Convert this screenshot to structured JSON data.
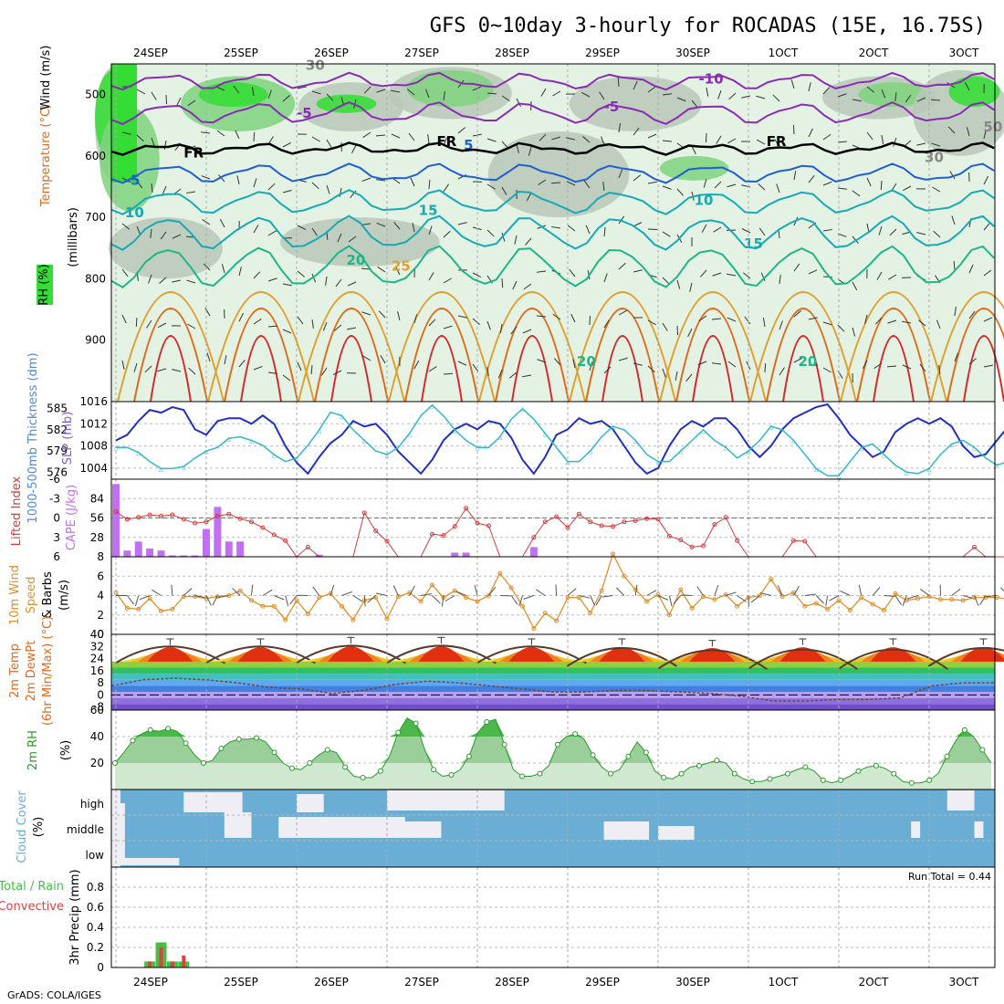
{
  "title": "GFS 0~10day 3-hourly for ROCADAS (15E, 16.75S)",
  "credit": "GrADS: COLA/IGES",
  "colors": {
    "rh_green": "#33dd33",
    "rh_mid": "#7fd47f",
    "rh_grey": "#b8c8b8",
    "rh_light": "#e4f2e4",
    "temp_purple": "#8a2bb5",
    "temp_blue": "#1f5fd0",
    "temp_cyan": "#17a9b5",
    "temp_teal": "#1fb58a",
    "temp_gold": "#e0a030",
    "temp_orange": "#e06a1a",
    "temp_red": "#d62a2a",
    "slp_line": "#2030c0",
    "thickness_line": "#30b8c8",
    "lifted_index": "#d83a3a",
    "cape_bar": "#c070f0",
    "wind_speed": "#e0902a",
    "rh2m_line": "#2a9a2a",
    "cloud_blue": "#6aaed6",
    "cloud_white": "#eeeef4",
    "precip_total": "#44c044",
    "precip_conv": "#e04040"
  },
  "chart_data": [
    {
      "panel": "upper-air",
      "type": "heatmap",
      "x_ticks": [
        "24SEP",
        "25SEP",
        "26SEP",
        "27SEP",
        "28SEP",
        "29SEP",
        "30SEP",
        "1OCT",
        "2OCT",
        "3OCT"
      ],
      "y_ticks": [
        500,
        600,
        700,
        800,
        900
      ],
      "ylim": [
        1000,
        450
      ],
      "ylabel_rh": "RH (%)",
      "ylabel_temp": "Temperature (°C)",
      "ylabel_wind": "Wind (m/s)",
      "ylabel_pressure": "(millibars)",
      "contour_labels": [
        {
          "text": "-10",
          "day": 6.45,
          "p": 482,
          "color": "temp_purple"
        },
        {
          "text": "-5",
          "day": 2.0,
          "p": 538,
          "color": "temp_purple"
        },
        {
          "text": "-5",
          "day": 5.4,
          "p": 527,
          "color": "temp_purple"
        },
        {
          "text": "FR",
          "day": 0.75,
          "p": 602,
          "color": "#000000"
        },
        {
          "text": "FR",
          "day": 3.55,
          "p": 584,
          "color": "#000000"
        },
        {
          "text": "FR",
          "day": 7.2,
          "p": 584,
          "color": "#000000"
        },
        {
          "text": "-5",
          "day": 0.1,
          "p": 647,
          "color": "temp_blue"
        },
        {
          "text": "5",
          "day": 3.85,
          "p": 590,
          "color": "temp_blue"
        },
        {
          "text": "10",
          "day": 0.1,
          "p": 700,
          "color": "temp_cyan"
        },
        {
          "text": "15",
          "day": 3.35,
          "p": 696,
          "color": "temp_cyan"
        },
        {
          "text": "10",
          "day": 6.4,
          "p": 680,
          "color": "temp_cyan"
        },
        {
          "text": "15",
          "day": 6.95,
          "p": 750,
          "color": "temp_cyan"
        },
        {
          "text": "20",
          "day": 2.55,
          "p": 777,
          "color": "temp_teal"
        },
        {
          "text": "25",
          "day": 3.05,
          "p": 787,
          "color": "temp_gold"
        },
        {
          "text": "20",
          "day": 5.1,
          "p": 942,
          "color": "temp_teal"
        },
        {
          "text": "20",
          "day": 7.55,
          "p": 942,
          "color": "temp_teal"
        },
        {
          "text": "30",
          "day": 2.1,
          "p": 460,
          "color": "#888888"
        },
        {
          "text": "50",
          "day": 9.6,
          "p": 560,
          "color": "#888888"
        },
        {
          "text": "30",
          "day": 8.95,
          "p": 610,
          "color": "#888888"
        }
      ]
    },
    {
      "panel": "slp-thickness",
      "type": "line",
      "ylabel_thickness": "1000-500mb Thickness (dm)",
      "ylabel_slp": "SLP (mb)",
      "left_ticks": [
        576,
        579,
        582,
        585
      ],
      "right_ticks": [
        1004,
        1008,
        1012,
        1016
      ],
      "slp_ylim": [
        1002,
        1016
      ],
      "thickness_ylim": [
        575,
        586
      ],
      "series": [
        {
          "name": "SLP (mb)",
          "unit": "mb",
          "values": [
            1009,
            1010,
            1012.5,
            1014.5,
            1014,
            1015,
            1014.5,
            1011,
            1010,
            1012.5,
            1013,
            1013,
            1012,
            1013.5,
            1012,
            1008,
            1005,
            1003,
            1006,
            1008.5,
            1010,
            1012.5,
            1011.5,
            1012,
            1010,
            1007,
            1005,
            1003,
            1005.5,
            1009,
            1011,
            1012,
            1011,
            1012.5,
            1012,
            1009.5,
            1005.5,
            1003,
            1006,
            1010,
            1011,
            1013,
            1012,
            1012.5,
            1011,
            1008,
            1005,
            1003,
            1004,
            1008,
            1011,
            1012.5,
            1011.5,
            1013,
            1013,
            1011,
            1008,
            1006,
            1008,
            1011,
            1013,
            1014,
            1015,
            1015.5,
            1013,
            1010,
            1008,
            1006,
            1007,
            1010.5,
            1012,
            1013,
            1012,
            1013,
            1011.5,
            1008,
            1006,
            1006.5,
            1009,
            1011.5,
            1013.5,
            1012.5,
            1011,
            1012,
            1011.5,
            1008,
            1005,
            1004,
            1006,
            1009,
            1011.5,
            1012.5,
            1011,
            1012,
            1011.5,
            1008,
            1005.5,
            1006,
            1008,
            1010.5,
            1012,
            1013
          ]
        },
        {
          "name": "1000-500mb Thickness (dm)",
          "unit": "dm",
          "values": [
            579.5,
            579.5,
            578.8,
            577.5,
            576.5,
            576.5,
            576.8,
            578,
            579,
            579.5,
            580.8,
            581,
            580.5,
            579.8,
            578.5,
            577.5,
            578,
            579.8,
            582,
            584.5,
            584,
            582,
            580.5,
            579,
            578.5,
            579.5,
            581.5,
            584,
            585.5,
            584,
            582,
            580.5,
            579.5,
            579.5,
            581,
            583.5,
            585,
            583.5,
            581.5,
            579.5,
            577.5,
            577.5,
            579,
            581,
            582.5,
            582,
            580.5,
            578.5,
            577.5,
            577.5,
            579,
            580.5,
            582,
            580.5,
            579.5,
            578,
            579,
            580.5,
            582.5,
            582,
            580.5,
            578.5,
            576.5,
            575.5,
            575.5,
            577.5,
            579.5,
            580,
            578.5,
            577,
            576,
            575.8,
            576.5,
            578.5,
            580,
            580.5,
            579.5,
            578,
            577,
            577.5,
            579.5,
            581.5,
            583,
            581.5,
            580,
            578,
            576.5,
            576.5,
            578,
            580,
            582,
            583.5,
            583,
            581,
            579,
            577.5,
            576.5,
            576.5,
            577.5,
            577
          ]
        }
      ]
    },
    {
      "panel": "cape-lifted-index",
      "type": "bar",
      "ylabel_li": "Lifted Index",
      "ylabel_cape": "CAPE (J/kg)",
      "left_ticks": [
        "-6",
        "-3",
        "0",
        "3",
        "6"
      ],
      "right_ticks": [
        28,
        56,
        84
      ],
      "cape_ylim": [
        0,
        112
      ],
      "li_ylim": [
        -6,
        6
      ],
      "cape_bars": [
        {
          "step": 0,
          "value": 105
        },
        {
          "step": 1,
          "value": 9
        },
        {
          "step": 2,
          "value": 22
        },
        {
          "step": 3,
          "value": 12
        },
        {
          "step": 4,
          "value": 9
        },
        {
          "step": 5,
          "value": 2
        },
        {
          "step": 6,
          "value": 2
        },
        {
          "step": 7,
          "value": 2
        },
        {
          "step": 8,
          "value": 40
        },
        {
          "step": 9,
          "value": 72
        },
        {
          "step": 10,
          "value": 22
        },
        {
          "step": 11,
          "value": 22
        },
        {
          "step": 18,
          "value": 3
        },
        {
          "step": 30,
          "value": 6
        },
        {
          "step": 31,
          "value": 6
        },
        {
          "step": 37,
          "value": 14
        }
      ],
      "li_values": [
        -1,
        0.2,
        -0.1,
        -0.5,
        -0.3,
        -0.5,
        0.2,
        0.8,
        0.6,
        -0.3,
        -0.6,
        0.1,
        0.6,
        1.5,
        2.6,
        3.5,
        6,
        4.5,
        6,
        6,
        6,
        6,
        -0.8,
        2,
        3.6,
        6,
        6,
        6,
        2.5,
        2.7,
        1.3,
        -1.5,
        0.8,
        1.2,
        6,
        6,
        6,
        3,
        0.6,
        -0.2,
        1.5,
        -0.6,
        0.6,
        1.2,
        1.3,
        0.6,
        0.4,
        0.1,
        0.2,
        2.8,
        3.4,
        4.5,
        4.3,
        1,
        -0.1,
        3.5,
        6,
        6,
        6,
        6,
        3.5,
        3.6,
        6,
        6,
        6,
        6,
        6,
        6,
        6,
        6,
        6,
        6,
        6,
        6,
        6,
        6,
        4.5,
        6,
        6,
        6,
        6,
        6,
        6,
        6,
        6,
        6,
        6,
        6,
        6,
        6,
        6,
        6,
        4.7,
        6,
        3,
        0.2,
        3,
        5.3,
        2,
        3.6,
        6
      ]
    },
    {
      "panel": "10m-wind",
      "type": "line",
      "ylabel": "10m Wind Speed & Barbs (m/s)",
      "ylabel_line1": "10m Wind",
      "ylabel_line2": "Speed",
      "ylabel_line3": "& Barbs",
      "ylabel_line4": "(m/s)",
      "y_ticks": [
        0,
        2,
        4,
        6,
        8
      ],
      "ylim": [
        0,
        8
      ],
      "values": [
        4.3,
        2.7,
        2.6,
        3.7,
        2.4,
        2.6,
        3.9,
        3.9,
        3.7,
        3.9,
        4,
        4.5,
        3.5,
        2.9,
        2.9,
        1.5,
        3.5,
        2.1,
        3.8,
        4.2,
        2.9,
        1.5,
        3.5,
        3.8,
        1.6,
        3.9,
        4.3,
        3.4,
        5.1,
        3.8,
        4.5,
        3.8,
        3.4,
        4,
        6.3,
        4.8,
        2.9,
        0.6,
        2.2,
        1.4,
        3.8,
        3.8,
        2.2,
        4.5,
        8.3,
        6,
        4.6,
        3.4,
        4.1,
        2,
        4.6,
        2.7,
        3.9,
        3.6,
        4.1,
        2.9,
        3.8,
        4,
        5.7,
        3.9,
        4.3,
        2.9,
        3.2,
        2.6,
        3.5,
        2.5,
        3.8,
        3.1,
        2.5,
        4.2,
        3.5,
        3.7,
        3.9,
        3.6,
        3.6,
        3.5,
        3.8,
        3.8,
        3.8,
        3.6,
        3.5,
        5.5,
        4.2,
        3.9,
        4.8,
        5.6,
        4.3,
        3.2,
        0.5,
        0.5,
        4,
        4.3,
        3.2,
        2.2,
        5.6,
        4.9,
        3.2,
        3.9,
        3.4,
        2.8,
        3.8
      ]
    },
    {
      "panel": "2m-temperature",
      "type": "area",
      "ylabel_line1": "2m Temp",
      "ylabel_line2": "2m DewPt",
      "ylabel_line3": "(6hr Min/Max) (°C)",
      "y_ticks": [
        "-8",
        "0",
        "8",
        "16",
        "24",
        "32",
        "40"
      ],
      "y_top_tick": "40",
      "ylim": [
        -10,
        40
      ],
      "temp_max_days": [
        0.6,
        1.6,
        2.6,
        3.6,
        4.6,
        5.6,
        6.6,
        7.6,
        8.6,
        9.6
      ],
      "temp_max_values": [
        33,
        33,
        34,
        34,
        33,
        33,
        32,
        33,
        33,
        33
      ],
      "temp_min_values": [
        21,
        21,
        21,
        21,
        21,
        19,
        17,
        17,
        17,
        19
      ],
      "dewpoint_values": [
        6,
        10,
        11,
        10,
        8,
        5,
        4,
        1,
        3,
        7,
        9,
        8,
        6,
        4,
        2,
        2,
        3,
        3,
        2,
        1,
        -1,
        -4,
        -4,
        -3,
        -3,
        -2,
        6,
        8,
        8
      ]
    },
    {
      "panel": "2m-rh",
      "type": "area",
      "ylabel": "2m RH (%)",
      "y_ticks": [
        20,
        40,
        60
      ],
      "ylim": [
        0,
        60
      ],
      "values": [
        20,
        28,
        37,
        42,
        45,
        44,
        46,
        44,
        35,
        26,
        20,
        22,
        31,
        36,
        38,
        38,
        39,
        36,
        28,
        20,
        16,
        15,
        20,
        26,
        30,
        28,
        17,
        10,
        9,
        9,
        14,
        25,
        43,
        54,
        50,
        30,
        15,
        10,
        11,
        15,
        25,
        43,
        51,
        53,
        34,
        15,
        10,
        10,
        12,
        18,
        34,
        40,
        42,
        38,
        26,
        17,
        12,
        15,
        25,
        36,
        28,
        14,
        9,
        8,
        12,
        17,
        18,
        20,
        22,
        20,
        12,
        8,
        6,
        6,
        8,
        10,
        12,
        15,
        17,
        14,
        7,
        5,
        7,
        10,
        14,
        17,
        18,
        16,
        12,
        6,
        5,
        5,
        7,
        12,
        25,
        37,
        45,
        40,
        30,
        20
      ]
    },
    {
      "panel": "cloud-cover",
      "type": "table",
      "ylabel": "Cloud Cover (%)",
      "rows": [
        "high",
        "middle",
        "low"
      ]
    },
    {
      "panel": "3hr-precip",
      "type": "bar",
      "ylabel_left_green": "Total / Rain",
      "ylabel_left_red": "Convective",
      "ylabel": "3hr Precip (mm)",
      "y_ticks": [
        "0",
        "0.2",
        "0.4",
        "0.6",
        "0.8"
      ],
      "ylim": [
        0,
        1
      ],
      "run_total_text": "Run Total = 0.44",
      "total_bars": [
        {
          "step": 3,
          "value": 0.06
        },
        {
          "step": 4,
          "value": 0.25
        },
        {
          "step": 5,
          "value": 0.06
        },
        {
          "step": 6,
          "value": 0.06
        }
      ],
      "convective_bars": [
        {
          "step": 3,
          "value": 0.06
        },
        {
          "step": 4,
          "value": 0.2
        },
        {
          "step": 5,
          "value": 0.06
        },
        {
          "step": 6,
          "value": 0.12
        }
      ]
    }
  ]
}
